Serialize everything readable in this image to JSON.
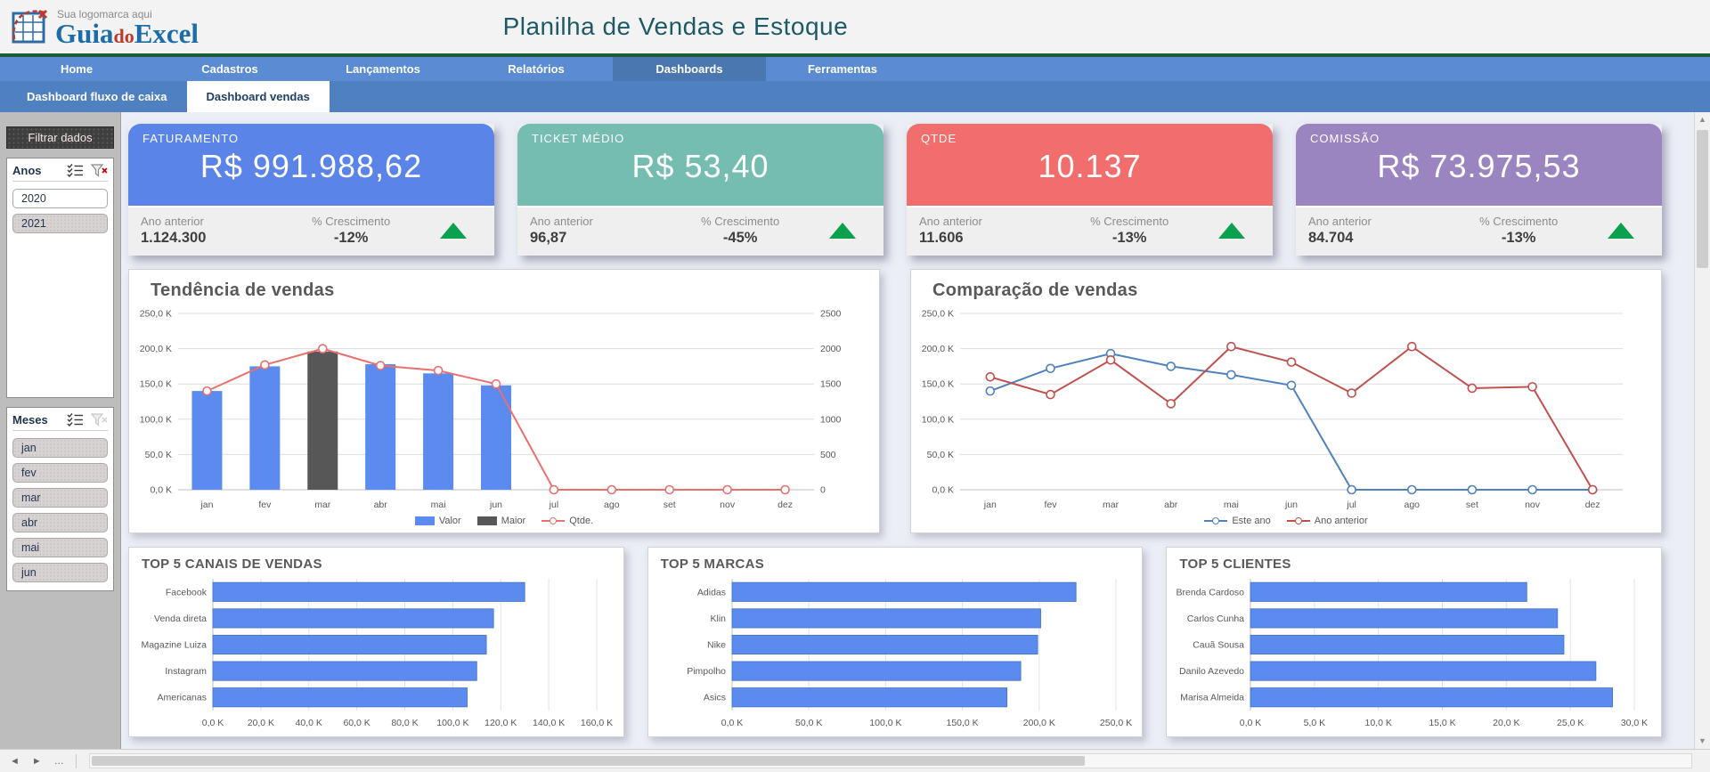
{
  "header": {
    "tagline": "Sua logomarca aqui",
    "brand": {
      "guia": "Guia",
      "do": "do",
      "excel": "Excel"
    },
    "title": "Planilha de Vendas e Estoque"
  },
  "nav": {
    "items": [
      {
        "label": "Home",
        "active": false
      },
      {
        "label": "Cadastros",
        "active": false
      },
      {
        "label": "Lançamentos",
        "active": false
      },
      {
        "label": "Relatórios",
        "active": false
      },
      {
        "label": "Dashboards",
        "active": true
      },
      {
        "label": "Ferramentas",
        "active": false
      }
    ]
  },
  "subtabs": {
    "items": [
      {
        "label": "Dashboard fluxo de caixa",
        "active": false
      },
      {
        "label": "Dashboard vendas",
        "active": true
      }
    ]
  },
  "sidebar": {
    "title": "Filtrar dados",
    "slicers": [
      {
        "name": "Anos",
        "clear_filter_enabled": true,
        "items": [
          {
            "label": "2020",
            "selected": false
          },
          {
            "label": "2021",
            "selected": true
          }
        ]
      },
      {
        "name": "Meses",
        "clear_filter_enabled": false,
        "items": [
          {
            "label": "jan",
            "selected": true
          },
          {
            "label": "fev",
            "selected": true
          },
          {
            "label": "mar",
            "selected": true
          },
          {
            "label": "abr",
            "selected": true
          },
          {
            "label": "mai",
            "selected": true
          },
          {
            "label": "jun",
            "selected": true
          }
        ]
      }
    ]
  },
  "kpis": [
    {
      "id": "faturamento",
      "label": "FATURAMENTO",
      "value": "R$ 991.988,62",
      "color": "#5b84e8",
      "prev_label": "Ano anterior",
      "prev_value": "1.124.300",
      "growth_label": "% Crescimento",
      "growth_value": "-12%",
      "trend_color": "#0aa14e"
    },
    {
      "id": "ticket-medio",
      "label": "TICKET MÉDIO",
      "value": "R$ 53,40",
      "color": "#74bdb0",
      "prev_label": "Ano anterior",
      "prev_value": "96,87",
      "growth_label": "% Crescimento",
      "growth_value": "-45%",
      "trend_color": "#0aa14e"
    },
    {
      "id": "qtde",
      "label": "QTDE",
      "value": "10.137",
      "color": "#f26e6c",
      "prev_label": "Ano anterior",
      "prev_value": "11.606",
      "growth_label": "% Crescimento",
      "growth_value": "-13%",
      "trend_color": "#0aa14e"
    },
    {
      "id": "comissao",
      "label": "COMISSÃO",
      "value": "R$ 73.975,53",
      "color": "#9b85c1",
      "prev_label": "Ano anterior",
      "prev_value": "84.704",
      "growth_label": "% Crescimento",
      "growth_value": "-13%",
      "trend_color": "#0aa14e"
    }
  ],
  "chart_data": [
    {
      "type": "combo",
      "title": "Tendência de vendas",
      "categories": [
        "jan",
        "fev",
        "mar",
        "abr",
        "mai",
        "jun",
        "jul",
        "ago",
        "set",
        "nov",
        "dez"
      ],
      "y_left": {
        "max": 250,
        "ticks": [
          "250,0 K",
          "200,0 K",
          "150,0 K",
          "100,0 K",
          "50,0 K",
          "0,0 K"
        ]
      },
      "y_right": {
        "max": 2500,
        "ticks": [
          "2500",
          "2000",
          "1500",
          "1000",
          "500",
          "0"
        ]
      },
      "series": [
        {
          "name": "Valor",
          "type": "bar",
          "axis": "left",
          "color": "#5b8bee",
          "values": [
            140,
            175,
            0,
            178,
            165,
            148,
            0,
            0,
            0,
            0,
            0
          ]
        },
        {
          "name": "Maior",
          "type": "bar",
          "axis": "left",
          "color": "#575757",
          "values": [
            0,
            0,
            196,
            0,
            0,
            0,
            0,
            0,
            0,
            0,
            0
          ]
        },
        {
          "name": "Qtde.",
          "type": "line",
          "axis": "right",
          "color": "#e87170",
          "values": [
            1400,
            1770,
            2000,
            1760,
            1690,
            1500,
            0,
            0,
            0,
            0,
            0
          ]
        }
      ],
      "legend": [
        {
          "label": "Valor",
          "swatch": "bar",
          "color": "#5b8bee"
        },
        {
          "label": "Maior",
          "swatch": "bar",
          "color": "#575757"
        },
        {
          "label": "Qtde.",
          "swatch": "line",
          "color": "#e87170"
        }
      ]
    },
    {
      "type": "combo",
      "title": "Comparação de vendas",
      "categories": [
        "jan",
        "fev",
        "mar",
        "abr",
        "mai",
        "jun",
        "jul",
        "ago",
        "set",
        "nov",
        "dez"
      ],
      "y_left": {
        "max": 250,
        "ticks": [
          "250,0 K",
          "200,0 K",
          "150,0 K",
          "100,0 K",
          "50,0 K",
          "0,0 K"
        ]
      },
      "series": [
        {
          "name": "Este ano",
          "type": "line",
          "axis": "left",
          "color": "#4f81bd",
          "values": [
            140,
            172,
            193,
            175,
            163,
            148,
            0,
            0,
            0,
            0,
            0
          ]
        },
        {
          "name": "Ano anterior",
          "type": "line",
          "axis": "left",
          "color": "#c0504d",
          "values": [
            160,
            135,
            184,
            122,
            203,
            181,
            137,
            203,
            144,
            146,
            0
          ]
        }
      ],
      "legend": [
        {
          "label": "Este ano",
          "swatch": "line",
          "color": "#4f81bd"
        },
        {
          "label": "Ano anterior",
          "swatch": "line",
          "color": "#c0504d"
        }
      ]
    },
    {
      "type": "hbar",
      "title": "TOP 5 CANAIS DE VENDAS",
      "bar_color": "#5b8bee",
      "categories": [
        "Facebook",
        "Venda direta",
        "Magazine Luiza",
        "Instagram",
        "Americanas"
      ],
      "values": [
        130,
        117,
        114,
        110,
        106
      ],
      "x": {
        "max": 160,
        "ticks": [
          "0,0 K",
          "20,0 K",
          "40,0 K",
          "60,0 K",
          "80,0 K",
          "100,0 K",
          "120,0 K",
          "140,0 K",
          "160,0 K"
        ]
      }
    },
    {
      "type": "hbar",
      "title": "TOP 5 MARCAS",
      "bar_color": "#5b8bee",
      "categories": [
        "Adidas",
        "Klin",
        "Nike",
        "Pimpolho",
        "Asics"
      ],
      "values": [
        224,
        201,
        199,
        188,
        179
      ],
      "x": {
        "max": 250,
        "ticks": [
          "0,0 K",
          "50,0 K",
          "100,0 K",
          "150,0 K",
          "200,0 K",
          "250,0 K"
        ]
      }
    },
    {
      "type": "hbar",
      "title": "TOP 5 CLIENTES",
      "bar_color": "#5b8bee",
      "categories": [
        "Brenda Cardoso",
        "Carlos Cunha",
        "Cauã Sousa",
        "Danilo Azevedo",
        "Marisa Almeida"
      ],
      "values": [
        21.6,
        24,
        24.5,
        27,
        28.3
      ],
      "x": {
        "max": 30,
        "ticks": [
          "0,0 K",
          "5,0 K",
          "10,0 K",
          "15,0 K",
          "20,0 K",
          "25,0 K",
          "30,0 K"
        ]
      }
    }
  ],
  "footer": {
    "prev_sheet": "◄",
    "next_sheet": "►",
    "more_sheets": "…",
    "scroll_up": "▲",
    "scroll_down": "▼"
  }
}
